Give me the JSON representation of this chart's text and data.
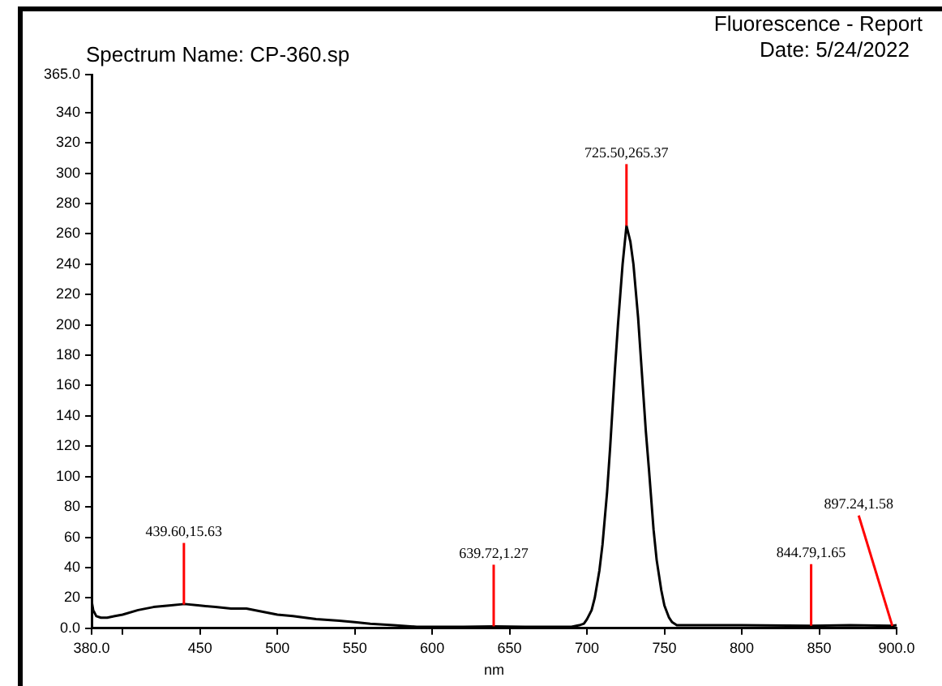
{
  "chart_data": {
    "type": "line",
    "title": "Spectrum Name: CP-360.sp",
    "xlabel": "nm",
    "annotations": [
      "Fluorescence - Report",
      "Date: 5/24/2022",
      {
        "text": "439.60,15.63",
        "x": 439.6,
        "y": 15.63
      },
      {
        "text": "639.72,1.27",
        "x": 639.72,
        "y": 1.27
      },
      {
        "text": "725.50,265.37",
        "x": 725.5,
        "y": 265.37
      },
      {
        "text": "844.79,1.65",
        "x": 844.79,
        "y": 1.65
      },
      {
        "text": "897.24,1.58",
        "x": 897.24,
        "y": 1.58
      }
    ],
    "series": [
      {
        "color": "#000000",
        "x": [
          380,
          381,
          383,
          386,
          390,
          395,
          400,
          410,
          420,
          430,
          440,
          450,
          460,
          470,
          480,
          490,
          500,
          510,
          525,
          540,
          550,
          560,
          575,
          590,
          600,
          620,
          640,
          660,
          680,
          690,
          695,
          698,
          700,
          703,
          705,
          708,
          710,
          713,
          715,
          718,
          720,
          723,
          725.5,
          728,
          730,
          733,
          735,
          738,
          740,
          743,
          745,
          748,
          750,
          753,
          755,
          758,
          762,
          770,
          800,
          844.79,
          870,
          897.24,
          900
        ],
        "values": [
          18,
          12,
          8,
          7,
          7,
          8,
          9,
          12,
          14,
          15,
          16,
          15,
          14,
          13,
          13,
          11,
          9,
          8,
          6,
          5,
          4,
          3,
          2,
          1,
          1,
          1,
          1.27,
          1,
          1,
          1,
          2,
          3,
          6,
          12,
          20,
          38,
          55,
          90,
          120,
          170,
          200,
          240,
          265.37,
          255,
          240,
          205,
          175,
          130,
          105,
          65,
          45,
          25,
          15,
          7,
          4,
          2,
          2,
          2,
          2,
          1.65,
          2,
          1.58,
          2
        ]
      }
    ],
    "xlim": [
      380,
      900
    ],
    "xticks": [
      {
        "value": 380,
        "label": "380.0"
      },
      {
        "value": 400,
        "label": null
      },
      450,
      500,
      550,
      600,
      650,
      700,
      750,
      800,
      850,
      {
        "value": 900,
        "label": "900.0"
      }
    ],
    "ylim": [
      0,
      365
    ],
    "yticks": [
      {
        "value": 0,
        "label": "0.0"
      },
      20,
      40,
      60,
      80,
      100,
      120,
      140,
      160,
      180,
      200,
      220,
      240,
      260,
      280,
      300,
      320,
      340,
      {
        "value": 365,
        "label": "365.0"
      }
    ],
    "grid": false,
    "legend": false,
    "marker": "none",
    "line_style": "solid"
  }
}
